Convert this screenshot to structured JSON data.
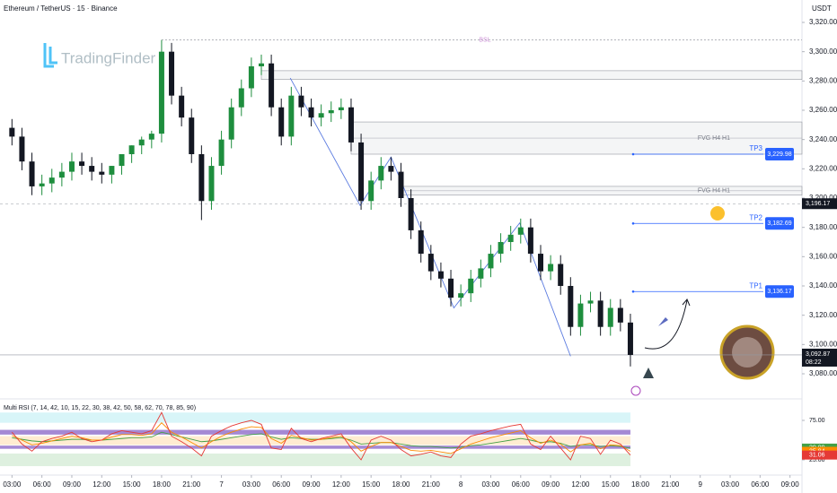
{
  "header": {
    "symbol": "Ethereum / TetherUS · 15 · Binance",
    "currency": "USDT",
    "watermark": "TradingFinder"
  },
  "chart_data": {
    "type": "candlestick",
    "x": [
      0,
      1,
      2,
      3,
      4,
      5,
      6,
      7,
      8,
      9,
      10,
      11,
      12,
      13,
      14,
      15,
      16,
      17,
      18,
      19,
      20,
      21,
      22,
      23,
      24,
      25,
      26,
      27,
      28,
      29,
      30,
      31,
      32,
      33,
      34,
      35,
      36,
      37,
      38,
      39,
      40,
      41,
      42,
      43,
      44,
      45,
      46,
      47,
      48,
      49,
      50,
      51,
      52,
      53,
      54,
      55,
      56,
      57,
      58,
      59,
      60,
      61,
      62
    ],
    "open": [
      3248,
      3242,
      3225,
      3208,
      3210,
      3214,
      3218,
      3225,
      3222,
      3218,
      3216,
      3222,
      3230,
      3236,
      3240,
      3244,
      3300,
      3270,
      3255,
      3230,
      3198,
      3222,
      3240,
      3262,
      3275,
      3290,
      3292,
      3262,
      3242,
      3270,
      3262,
      3255,
      3258,
      3260,
      3262,
      3238,
      3198,
      3212,
      3222,
      3218,
      3200,
      3178,
      3162,
      3150,
      3145,
      3132,
      3135,
      3145,
      3152,
      3162,
      3170,
      3175,
      3180,
      3162,
      3150,
      3155,
      3140,
      3112,
      3128,
      3130,
      3112,
      3125,
      3115
    ],
    "high": [
      3254,
      3248,
      3231,
      3216,
      3220,
      3224,
      3231,
      3231,
      3228,
      3224,
      3222,
      3228,
      3236,
      3242,
      3246,
      3308,
      3306,
      3276,
      3261,
      3236,
      3228,
      3246,
      3268,
      3281,
      3296,
      3298,
      3298,
      3268,
      3276,
      3276,
      3268,
      3264,
      3266,
      3268,
      3268,
      3244,
      3218,
      3228,
      3228,
      3224,
      3206,
      3184,
      3168,
      3156,
      3151,
      3141,
      3151,
      3158,
      3168,
      3176,
      3181,
      3186,
      3186,
      3168,
      3161,
      3161,
      3146,
      3134,
      3136,
      3136,
      3131,
      3131,
      3121
    ],
    "low": [
      3236,
      3219,
      3202,
      3202,
      3204,
      3208,
      3212,
      3216,
      3212,
      3210,
      3210,
      3216,
      3224,
      3230,
      3234,
      3238,
      3264,
      3249,
      3224,
      3185,
      3192,
      3216,
      3234,
      3256,
      3269,
      3284,
      3256,
      3236,
      3236,
      3256,
      3249,
      3249,
      3252,
      3254,
      3232,
      3192,
      3192,
      3206,
      3212,
      3194,
      3172,
      3156,
      3144,
      3139,
      3126,
      3126,
      3129,
      3139,
      3146,
      3156,
      3164,
      3169,
      3156,
      3144,
      3144,
      3134,
      3106,
      3106,
      3122,
      3106,
      3106,
      3109,
      3085
    ],
    "close": [
      3242,
      3225,
      3208,
      3210,
      3214,
      3218,
      3225,
      3222,
      3218,
      3216,
      3222,
      3230,
      3236,
      3240,
      3244,
      3300,
      3270,
      3255,
      3230,
      3198,
      3222,
      3240,
      3262,
      3275,
      3290,
      3292,
      3262,
      3242,
      3270,
      3262,
      3255,
      3258,
      3260,
      3262,
      3238,
      3198,
      3212,
      3222,
      3218,
      3200,
      3178,
      3162,
      3150,
      3145,
      3132,
      3135,
      3145,
      3152,
      3162,
      3170,
      3175,
      3180,
      3162,
      3150,
      3155,
      3140,
      3112,
      3128,
      3130,
      3112,
      3125,
      3115,
      3092.87
    ],
    "up_color": "#1e8e3e",
    "down_color": "#131722",
    "xlim": [
      -1.2,
      79.2
    ],
    "ylim": [
      3072,
      3330
    ],
    "yticks": [
      {
        "value": 3080,
        "label": "3,080.00"
      },
      {
        "value": 3100,
        "label": "3,100.00"
      },
      {
        "value": 3120,
        "label": "3,120.00"
      },
      {
        "value": 3140,
        "label": "3,140.00"
      },
      {
        "value": 3160,
        "label": "3,160.00"
      },
      {
        "value": 3180,
        "label": "3,180.00"
      },
      {
        "value": 3200,
        "label": "3,200.00"
      },
      {
        "value": 3220,
        "label": "3,220.00"
      },
      {
        "value": 3240,
        "label": "3,240.00"
      },
      {
        "value": 3260,
        "label": "3,260.00"
      },
      {
        "value": 3280,
        "label": "3,280.00"
      },
      {
        "value": 3300,
        "label": "3,300.00"
      },
      {
        "value": 3320,
        "label": "3,320.00"
      }
    ],
    "xticks": [
      {
        "value": 0,
        "label": "03:00"
      },
      {
        "value": 3,
        "label": "06:00"
      },
      {
        "value": 6,
        "label": "09:00"
      },
      {
        "value": 9,
        "label": "12:00"
      },
      {
        "value": 12,
        "label": "15:00"
      },
      {
        "value": 15,
        "label": "18:00"
      },
      {
        "value": 18,
        "label": "21:00"
      },
      {
        "value": 21,
        "label": "7"
      },
      {
        "value": 24,
        "label": "03:00"
      },
      {
        "value": 27,
        "label": "06:00"
      },
      {
        "value": 30,
        "label": "09:00"
      },
      {
        "value": 33,
        "label": "12:00"
      },
      {
        "value": 36,
        "label": "15:00"
      },
      {
        "value": 39,
        "label": "18:00"
      },
      {
        "value": 42,
        "label": "21:00"
      },
      {
        "value": 45,
        "label": "8"
      },
      {
        "value": 48,
        "label": "03:00"
      },
      {
        "value": 51,
        "label": "06:00"
      },
      {
        "value": 54,
        "label": "09:00"
      },
      {
        "value": 57,
        "label": "12:00"
      },
      {
        "value": 60,
        "label": "15:00"
      },
      {
        "value": 63,
        "label": "18:00"
      },
      {
        "value": 66,
        "label": "21:00"
      },
      {
        "value": 69,
        "label": "9"
      },
      {
        "value": 72,
        "label": "03:00"
      },
      {
        "value": 75,
        "label": "06:00"
      },
      {
        "value": 78,
        "label": "09:00"
      }
    ],
    "bsl": {
      "label": "BSL",
      "value": 3308,
      "x_from": 15
    },
    "zones": [
      {
        "from": 3287,
        "to": 3281,
        "x_from": 25
      },
      {
        "from": 3252,
        "to": 3230,
        "x_from": 34,
        "label": "FVG H4 H1"
      },
      {
        "from": 3208,
        "to": 3202,
        "x_from": 39,
        "label": "FVG H4 H1"
      }
    ],
    "targets": [
      {
        "name": "TP3",
        "value": 3229.98,
        "label": "3,229.98"
      },
      {
        "name": "TP2",
        "value": 3182.69,
        "label": "3,182.69"
      },
      {
        "name": "TP1",
        "value": 3136.17,
        "label": "3,136.17"
      }
    ],
    "crosshair": {
      "value": 3196.17,
      "label": "3,196.17"
    },
    "last_price": {
      "value": 3092.87,
      "label": "3,092.87",
      "countdown": "08:22"
    },
    "zigzag": {
      "x": [
        27.9,
        34.9,
        38,
        44.3,
        50.9,
        56
      ],
      "y": [
        3282,
        3195,
        3228,
        3125,
        3183,
        3092
      ]
    }
  },
  "rsi": {
    "type": "line",
    "title": "Multi RSI (7, 14, 42, 10, 15, 22, 30, 38, 42, 50, 58, 62, 70, 78, 85, 90)",
    "ylim": [
      0,
      100
    ],
    "yticks": [
      {
        "value": 75,
        "label": "75.00"
      },
      {
        "value": 25,
        "label": "25.00"
      }
    ],
    "series": [
      {
        "name": "RSI slow",
        "color": "#43a047",
        "value_label": "39.89",
        "values": [
          53,
          51,
          49,
          48,
          49,
          50,
          51,
          51,
          50,
          50,
          51,
          52,
          53,
          53,
          54,
          60,
          57,
          54,
          51,
          48,
          49,
          51,
          53,
          55,
          57,
          58,
          54,
          51,
          53,
          52,
          51,
          51,
          52,
          53,
          50,
          45,
          46,
          47,
          47,
          45,
          43,
          42,
          42,
          41,
          40,
          41,
          43,
          44,
          46,
          48,
          50,
          52,
          50,
          47,
          48,
          46,
          42,
          44,
          44,
          42,
          43,
          42,
          39.89
        ]
      },
      {
        "name": "RSI medium",
        "color": "#fb8c00",
        "value_label": "35.84",
        "values": [
          56,
          50,
          44,
          46,
          49,
          52,
          55,
          53,
          50,
          50,
          54,
          57,
          57,
          56,
          58,
          72,
          60,
          54,
          47,
          40,
          48,
          55,
          60,
          64,
          67,
          66,
          52,
          46,
          56,
          53,
          50,
          51,
          53,
          55,
          48,
          36,
          42,
          47,
          47,
          42,
          37,
          36,
          37,
          35,
          33,
          39,
          45,
          49,
          53,
          56,
          59,
          62,
          53,
          46,
          50,
          45,
          35,
          44,
          46,
          39,
          44,
          43,
          35.84
        ]
      },
      {
        "name": "RSI fast",
        "color": "#e53935",
        "value_label": "31.06",
        "values": [
          60,
          45,
          36,
          48,
          52,
          55,
          60,
          52,
          48,
          50,
          58,
          62,
          60,
          58,
          62,
          85,
          55,
          48,
          40,
          30,
          55,
          62,
          68,
          72,
          75,
          70,
          40,
          38,
          65,
          52,
          48,
          52,
          55,
          58,
          40,
          25,
          50,
          55,
          50,
          38,
          30,
          32,
          35,
          30,
          28,
          45,
          55,
          58,
          62,
          65,
          68,
          70,
          45,
          38,
          55,
          40,
          25,
          55,
          52,
          32,
          50,
          45,
          31.06
        ]
      }
    ]
  }
}
